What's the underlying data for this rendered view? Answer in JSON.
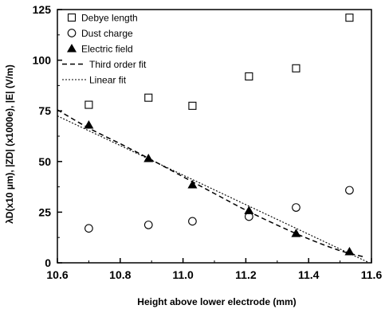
{
  "chart_data": {
    "type": "scatter",
    "title": "",
    "xlabel": "Height above lower electrode (mm)",
    "ylabel": "λD(x10 µm), |ZD| (x1000e), |E| (V/m)",
    "xlim": [
      10.6,
      11.6
    ],
    "ylim": [
      0,
      125
    ],
    "xticks": [
      10.6,
      10.8,
      11.0,
      11.2,
      11.4,
      11.6
    ],
    "yticks": [
      0,
      25,
      50,
      75,
      100,
      125
    ],
    "xtick_labels": [
      "10.6",
      "10.8",
      "11.0",
      "11.2",
      "11.4",
      "11.6"
    ],
    "ytick_labels": [
      "0",
      "25",
      "50",
      "75",
      "100",
      "125"
    ],
    "grid": false,
    "legend_position": "top-left",
    "series": [
      {
        "name": "Debye length",
        "marker": "open-square",
        "x": [
          10.7,
          10.89,
          11.03,
          11.21,
          11.36,
          11.53
        ],
        "y": [
          78,
          81.5,
          77.5,
          92,
          96,
          121
        ]
      },
      {
        "name": "Dust charge",
        "marker": "open-circle",
        "x": [
          10.7,
          10.89,
          11.03,
          11.21,
          11.36,
          11.53
        ],
        "y": [
          17,
          18.7,
          20.5,
          22.8,
          27.3,
          35.8
        ]
      },
      {
        "name": "Electric field",
        "marker": "filled-triangle",
        "x": [
          10.7,
          10.89,
          11.03,
          11.21,
          11.36,
          11.53
        ],
        "y": [
          68,
          51.5,
          38.5,
          25.8,
          14.5,
          5.5
        ]
      },
      {
        "name": "Third order fit",
        "style": "dashed-line",
        "x": [
          10.6,
          10.7,
          10.8,
          10.9,
          11.0,
          11.1,
          11.2,
          11.3,
          11.4,
          11.5,
          11.58
        ],
        "y": [
          75.5,
          66.5,
          58.8,
          50.8,
          42.5,
          34.2,
          26.0,
          18.6,
          11.8,
          6.0,
          2.8
        ]
      },
      {
        "name": "Linear fit",
        "style": "dotted-line",
        "x": [
          10.6,
          11.6
        ],
        "y": [
          72.5,
          -0.5
        ]
      }
    ]
  }
}
